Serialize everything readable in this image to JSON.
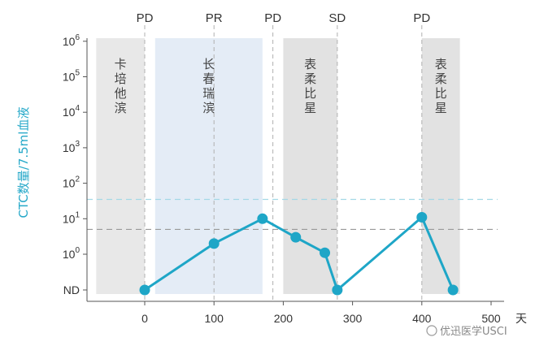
{
  "chart_data": {
    "type": "line",
    "ylabel": "CTC数量/7.5ml血液",
    "xlabel": "",
    "x_unit": "天",
    "xlim": [
      -70,
      500
    ],
    "x_ticks": [
      "0",
      "100",
      "200",
      "300",
      "400",
      "500"
    ],
    "y_ticks": [
      {
        "base": "ND",
        "exp": ""
      },
      {
        "base": "10",
        "exp": "0"
      },
      {
        "base": "10",
        "exp": "1"
      },
      {
        "base": "10",
        "exp": "2"
      },
      {
        "base": "10",
        "exp": "3"
      },
      {
        "base": "10",
        "exp": "4"
      },
      {
        "base": "10",
        "exp": "5"
      },
      {
        "base": "10",
        "exp": "6"
      }
    ],
    "series": [
      {
        "values": [
          {
            "x": 0,
            "y": "ND"
          },
          {
            "x": 100,
            "y": 2
          },
          {
            "x": 170,
            "y": 10
          },
          {
            "x": 218,
            "y": 3
          },
          {
            "x": 260,
            "y": 1.1
          },
          {
            "x": 278,
            "y": "ND"
          },
          {
            "x": 400,
            "y": 11
          },
          {
            "x": 445,
            "y": "ND"
          }
        ]
      }
    ],
    "events": [
      {
        "x": 0,
        "label": "PD"
      },
      {
        "x": 100,
        "label": "PR"
      },
      {
        "x": 185,
        "label": "PD"
      },
      {
        "x": 278,
        "label": "SD"
      },
      {
        "x": 400,
        "label": "PD"
      }
    ],
    "treatments": [
      {
        "x_start": -70,
        "x_end": 0,
        "label": "卡培他滨",
        "shade": "#e8e8e8"
      },
      {
        "x_start": 15,
        "x_end": 170,
        "label": "长春瑞滨",
        "shade": "#e4ecf6"
      },
      {
        "x_start": 200,
        "x_end": 278,
        "label": "表柔比星",
        "shade": "#e2e2e2"
      },
      {
        "x_start": 400,
        "x_end": 455,
        "label": "表柔比星",
        "shade": "#e2e2e2"
      }
    ],
    "thresholds": [
      {
        "y": 5,
        "color": "#999999"
      },
      {
        "y": 35,
        "color": "#a3d8e6"
      }
    ],
    "colors": {
      "line": "#1ea6c7",
      "axis_label": "#27a9c9"
    }
  },
  "watermark": "优迅医学USCI"
}
